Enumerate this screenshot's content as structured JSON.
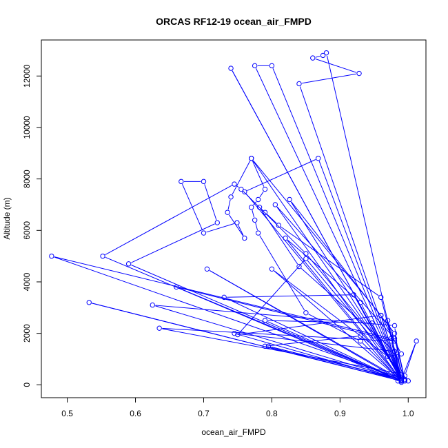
{
  "chart_data": {
    "type": "line",
    "title": "ORCAS RF12-19 ocean_air_FMPD",
    "xlabel": "ocean_air_FMPD",
    "ylabel": "Altitude (m)",
    "xlim": [
      0.462,
      1.026
    ],
    "ylim": [
      -500,
      13400
    ],
    "x_ticks": [
      0.5,
      0.6,
      0.7,
      0.8,
      0.9,
      1.0
    ],
    "x_tick_labels": [
      "0.5",
      "0.6",
      "0.7",
      "0.8",
      "0.9",
      "1.0"
    ],
    "y_ticks": [
      0,
      2000,
      4000,
      6000,
      8000,
      10000,
      12000
    ],
    "y_tick_labels": [
      "0",
      "2000",
      "4000",
      "6000",
      "8000",
      "10000",
      "12000"
    ],
    "grid": false,
    "legend": "none",
    "series_color": "#0000ff",
    "marker": "open-circle",
    "series": [
      {
        "x": [
          0.99,
          0.93,
          0.85,
          0.78,
          0.775,
          0.77,
          0.78,
          0.79,
          0.77,
          0.74,
          0.735,
          0.76,
          0.749,
          0.7,
          0.667,
          0.7,
          0.72,
          0.59,
          0.99,
          0.985,
          0.635,
          0.975,
          0.99,
          0.805,
          0.98,
          0.995,
          0.98,
          0.84,
          0.782,
          0.79,
          0.81,
          0.96,
          0.99,
          0.95,
          0.85,
          0.755,
          0.745,
          0.552,
          0.985,
          0.99,
          0.826,
          0.98,
          0.995,
          0.477,
          0.975,
          0.995,
          0.77,
          0.96,
          0.99,
          0.82,
          0.93,
          0.99,
          0.745,
          0.98,
          0.99,
          0.795,
          0.985,
          0.93,
          0.79,
          0.99,
          0.947,
          0.79,
          0.99,
          0.88,
          0.875,
          0.86,
          0.928,
          0.84,
          0.99,
          0.96,
          0.99,
          0.97,
          0.8,
          0.99,
          0.98,
          0.625,
          0.99,
          0.96,
          0.75,
          0.85,
          1.0,
          0.995,
          1.012,
          0.99,
          0.775,
          0.8,
          0.99,
          0.74,
          0.99,
          0.868,
          0.76,
          0.99,
          0.532,
          0.99,
          0.73,
          0.92,
          0.99,
          0.66,
          0.98,
          0.97,
          0.99,
          0.705,
          0.99,
          0.99
        ],
        "y": [
          150,
          1700,
          2800,
          5900,
          6400,
          6900,
          7200,
          7600,
          8800,
          7300,
          6700,
          5700,
          6300,
          5900,
          7900,
          7900,
          6300,
          4700,
          150,
          450,
          2200,
          1700,
          150,
          7000,
          1800,
          200,
          1300,
          4600,
          6900,
          6700,
          6200,
          3400,
          250,
          1900,
          5100,
          7600,
          7800,
          5000,
          150,
          300,
          7200,
          2000,
          200,
          5000,
          1800,
          150,
          8800,
          2700,
          200,
          5700,
          3200,
          150,
          2000,
          1300,
          200,
          1500,
          250,
          1900,
          1500,
          150,
          2400,
          2500,
          150,
          12900,
          12800,
          12700,
          12100,
          11700,
          150,
          2700,
          1200,
          1100,
          4500,
          150,
          2300,
          3100,
          200,
          2700,
          1950,
          4900,
          150,
          350,
          1700,
          200,
          12400,
          12400,
          150,
          12300,
          150,
          8800,
          7500,
          150,
          3200,
          150,
          3400,
          3500,
          150,
          3800,
          1700,
          2500,
          200,
          4500,
          150,
          100
        ]
      }
    ]
  }
}
